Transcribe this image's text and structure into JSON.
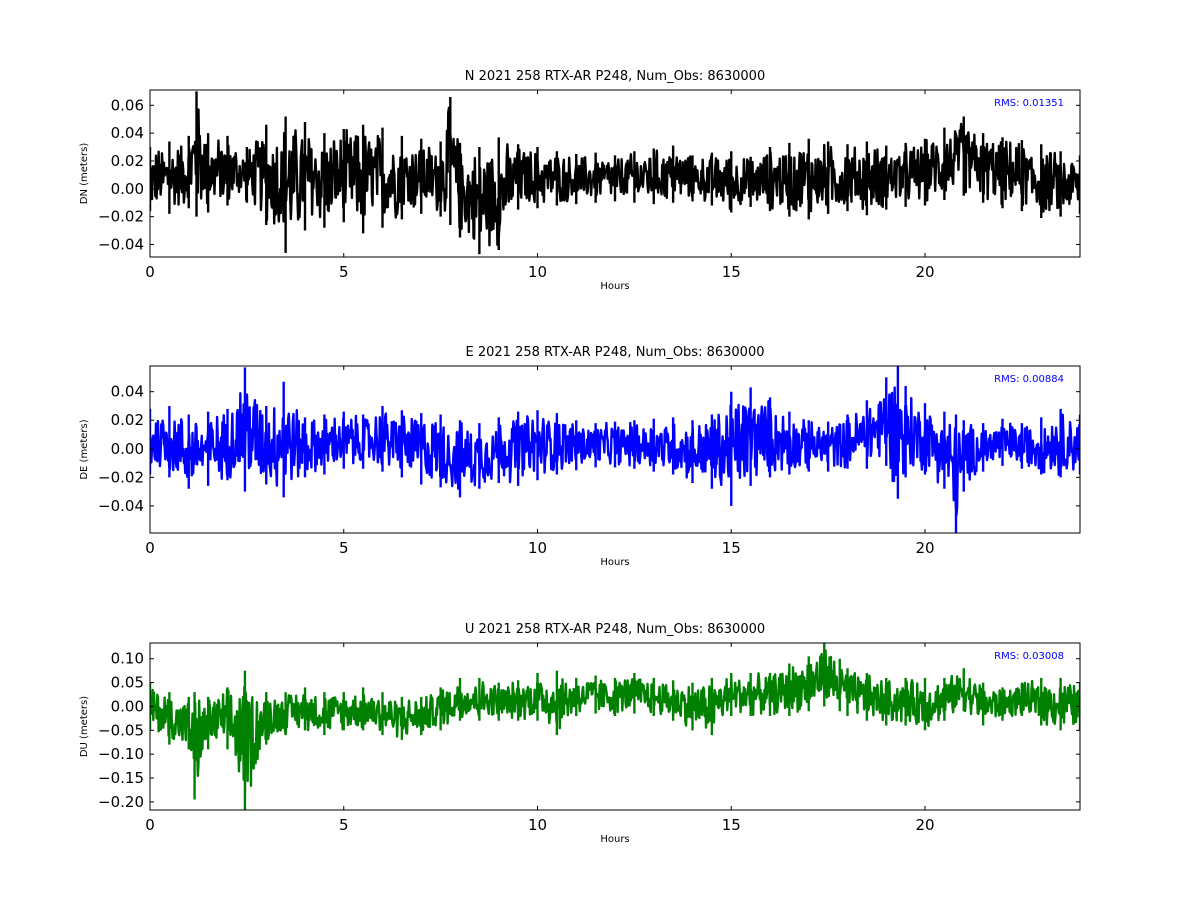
{
  "chart_data": [
    {
      "type": "line",
      "title": "N 2021 258 RTX-AR  P248, Num_Obs: 8630000",
      "xlabel": "Hours",
      "ylabel": "DN (meters)",
      "xlim": [
        0,
        24
      ],
      "ylim": [
        -0.049,
        0.071
      ],
      "xticks": [
        0,
        5,
        10,
        15,
        20
      ],
      "yticks": [
        -0.04,
        -0.02,
        0.0,
        0.02,
        0.04,
        0.06
      ],
      "ytick_labels": [
        "−0.04",
        "−0.02",
        "0.00",
        "0.02",
        "0.04",
        "0.06"
      ],
      "annotation": "RMS:  0.01351",
      "annotation_color": "#0000ff",
      "series": [
        {
          "color": "#000000",
          "x": [
            0,
            0.5,
            1,
            1.2,
            1.5,
            2,
            2.5,
            3,
            3.5,
            4,
            4.5,
            5,
            5.5,
            6,
            6.5,
            7,
            7.5,
            7.75,
            8,
            8.5,
            9,
            9.5,
            10,
            10.5,
            11,
            11.5,
            12,
            12.5,
            13,
            13.5,
            14,
            14.5,
            15,
            15.5,
            16,
            16.5,
            17,
            17.5,
            18,
            18.5,
            19,
            19.5,
            20,
            20.5,
            21,
            21.5,
            22,
            22.5,
            23,
            23.5,
            24
          ],
          "upper": [
            0.03,
            0.034,
            0.038,
            0.07,
            0.04,
            0.038,
            0.03,
            0.046,
            0.052,
            0.048,
            0.04,
            0.043,
            0.046,
            0.044,
            0.038,
            0.036,
            0.034,
            0.066,
            0.033,
            0.03,
            0.037,
            0.032,
            0.03,
            0.027,
            0.025,
            0.026,
            0.024,
            0.027,
            0.029,
            0.031,
            0.024,
            0.026,
            0.027,
            0.023,
            0.03,
            0.033,
            0.036,
            0.034,
            0.032,
            0.034,
            0.031,
            0.033,
            0.036,
            0.044,
            0.052,
            0.04,
            0.037,
            0.035,
            0.032,
            0.027,
            0.024
          ],
          "lower": [
            -0.016,
            -0.018,
            -0.014,
            -0.02,
            -0.017,
            -0.012,
            -0.01,
            -0.026,
            -0.046,
            -0.03,
            -0.028,
            -0.024,
            -0.032,
            -0.028,
            -0.022,
            -0.018,
            -0.02,
            -0.026,
            -0.035,
            -0.047,
            -0.044,
            -0.015,
            -0.014,
            -0.012,
            -0.011,
            -0.01,
            -0.009,
            -0.01,
            -0.011,
            -0.01,
            -0.009,
            -0.012,
            -0.017,
            -0.013,
            -0.016,
            -0.02,
            -0.022,
            -0.018,
            -0.016,
            -0.019,
            -0.015,
            -0.013,
            -0.012,
            -0.008,
            -0.005,
            -0.01,
            -0.014,
            -0.016,
            -0.021,
            -0.02,
            -0.018
          ]
        }
      ]
    },
    {
      "type": "line",
      "title": "E 2021 258 RTX-AR  P248, Num_Obs: 8630000",
      "xlabel": "Hours",
      "ylabel": "DE (meters)",
      "xlim": [
        0,
        24
      ],
      "ylim": [
        -0.059,
        0.058
      ],
      "xticks": [
        0,
        5,
        10,
        15,
        20
      ],
      "yticks": [
        -0.04,
        -0.02,
        0.0,
        0.02,
        0.04
      ],
      "ytick_labels": [
        "−0.04",
        "−0.02",
        "0.00",
        "0.02",
        "0.04"
      ],
      "annotation": "RMS:  0.00884",
      "annotation_color": "#0000ff",
      "series": [
        {
          "color": "#0000ff",
          "x": [
            0,
            0.5,
            1,
            1.5,
            2,
            2.45,
            3,
            3.45,
            4,
            4.5,
            5,
            5.5,
            6,
            6.5,
            7,
            7.5,
            8,
            8.5,
            9,
            9.5,
            10,
            10.5,
            11,
            11.5,
            12,
            12.5,
            13,
            13.5,
            14,
            14.5,
            15,
            15.5,
            16,
            16.5,
            17,
            17.5,
            18,
            18.5,
            19,
            19.3,
            19.5,
            20,
            20.5,
            20.8,
            21,
            21.5,
            22,
            22.5,
            23,
            23.5,
            24
          ],
          "upper": [
            0.028,
            0.03,
            0.024,
            0.026,
            0.028,
            0.057,
            0.03,
            0.047,
            0.022,
            0.024,
            0.026,
            0.024,
            0.03,
            0.027,
            0.025,
            0.024,
            0.02,
            0.018,
            0.022,
            0.026,
            0.027,
            0.025,
            0.02,
            0.018,
            0.019,
            0.02,
            0.021,
            0.022,
            0.02,
            0.024,
            0.04,
            0.043,
            0.036,
            0.026,
            0.02,
            0.019,
            0.024,
            0.034,
            0.05,
            0.058,
            0.044,
            0.032,
            0.026,
            0.024,
            0.02,
            0.018,
            0.021,
            0.018,
            0.022,
            0.028,
            0.024
          ],
          "lower": [
            -0.018,
            -0.02,
            -0.028,
            -0.026,
            -0.022,
            -0.03,
            -0.025,
            -0.034,
            -0.02,
            -0.018,
            -0.014,
            -0.014,
            -0.016,
            -0.02,
            -0.025,
            -0.027,
            -0.034,
            -0.028,
            -0.024,
            -0.026,
            -0.022,
            -0.018,
            -0.015,
            -0.013,
            -0.013,
            -0.014,
            -0.016,
            -0.018,
            -0.024,
            -0.028,
            -0.04,
            -0.026,
            -0.02,
            -0.018,
            -0.016,
            -0.016,
            -0.014,
            -0.014,
            -0.012,
            -0.035,
            -0.02,
            -0.018,
            -0.028,
            -0.059,
            -0.03,
            -0.016,
            -0.012,
            -0.014,
            -0.018,
            -0.02,
            -0.018
          ]
        }
      ]
    },
    {
      "type": "line",
      "title": "U 2021 258 RTX-AR  P248, Num_Obs: 8630000",
      "xlabel": "Hours",
      "ylabel": "DU (meters)",
      "xlim": [
        0,
        24
      ],
      "ylim": [
        -0.217,
        0.133
      ],
      "xticks": [
        0,
        5,
        10,
        15,
        20
      ],
      "yticks": [
        -0.2,
        -0.15,
        -0.1,
        -0.05,
        0.0,
        0.05,
        0.1
      ],
      "ytick_labels": [
        "−0.20",
        "−0.15",
        "−0.10",
        "−0.05",
        "0.00",
        "0.05",
        "0.10"
      ],
      "annotation": "RMS:  0.03008",
      "annotation_color": "#0000ff",
      "series": [
        {
          "color": "#008000",
          "x": [
            0,
            0.5,
            1,
            1.15,
            1.5,
            2,
            2.45,
            3,
            3.5,
            4,
            4.5,
            5,
            5.5,
            6,
            6.5,
            7,
            7.5,
            8,
            8.5,
            9,
            9.5,
            10,
            10.5,
            11,
            11.5,
            12,
            12.5,
            13,
            13.5,
            14,
            14.5,
            15,
            15.5,
            16,
            16.5,
            17,
            17.4,
            17.8,
            18,
            18.5,
            19,
            19.5,
            20,
            20.5,
            21,
            21.5,
            22,
            22.5,
            23,
            23.5,
            24
          ],
          "upper": [
            0.05,
            0.03,
            0.02,
            0.03,
            0.02,
            0.04,
            0.075,
            0.03,
            0.03,
            0.04,
            0.03,
            0.03,
            0.04,
            0.03,
            0.02,
            0.02,
            0.04,
            0.06,
            0.06,
            0.05,
            0.055,
            0.07,
            0.075,
            0.06,
            0.065,
            0.06,
            0.07,
            0.06,
            0.055,
            0.05,
            0.06,
            0.07,
            0.07,
            0.07,
            0.09,
            0.105,
            0.133,
            0.1,
            0.08,
            0.07,
            0.06,
            0.06,
            0.06,
            0.06,
            0.08,
            0.05,
            0.04,
            0.05,
            0.06,
            0.06,
            0.05
          ],
          "lower": [
            -0.05,
            -0.08,
            -0.09,
            -0.195,
            -0.09,
            -0.09,
            -0.217,
            -0.08,
            -0.06,
            -0.05,
            -0.06,
            -0.05,
            -0.05,
            -0.06,
            -0.07,
            -0.06,
            -0.05,
            -0.03,
            -0.03,
            -0.03,
            -0.03,
            -0.03,
            -0.06,
            -0.02,
            -0.015,
            -0.02,
            -0.015,
            -0.02,
            -0.03,
            -0.05,
            -0.06,
            -0.02,
            -0.02,
            -0.02,
            -0.02,
            -0.01,
            0.0,
            -0.01,
            -0.02,
            -0.03,
            -0.04,
            -0.04,
            -0.05,
            -0.03,
            -0.01,
            -0.04,
            -0.03,
            -0.02,
            -0.04,
            -0.05,
            -0.05
          ]
        }
      ]
    }
  ]
}
